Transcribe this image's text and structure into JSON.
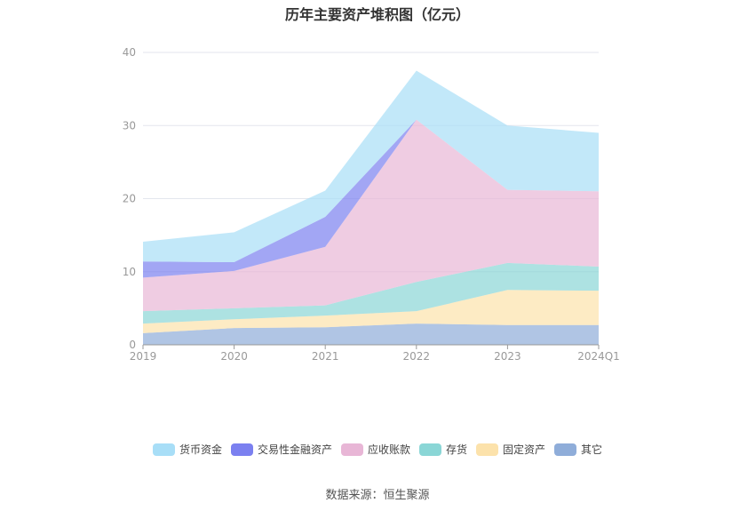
{
  "title": "历年主要资产堆积图（亿元）",
  "source": "数据来源：恒生聚源",
  "chart_data": {
    "type": "area",
    "stacked": true,
    "categories": [
      "2019",
      "2020",
      "2021",
      "2022",
      "2023",
      "2024Q1"
    ],
    "y_ticks": [
      "0",
      "10",
      "20",
      "30",
      "40"
    ],
    "ylim": [
      0,
      40
    ],
    "grid": true,
    "legend_position": "bottom",
    "series": [
      {
        "name": "其它",
        "color": "#8fadd9",
        "values": [
          1.6,
          2.3,
          2.4,
          2.9,
          2.7,
          2.7
        ]
      },
      {
        "name": "固定资产",
        "color": "#fce2ab",
        "values": [
          1.3,
          1.2,
          1.6,
          1.7,
          4.8,
          4.7
        ]
      },
      {
        "name": "存货",
        "color": "#8ad6d6",
        "values": [
          1.7,
          1.5,
          1.4,
          4.0,
          3.7,
          3.3
        ]
      },
      {
        "name": "应收账款",
        "color": "#e8b6d6",
        "values": [
          4.6,
          5.1,
          8.0,
          22.2,
          10.0,
          10.3
        ]
      },
      {
        "name": "交易性金融资产",
        "color": "#7b80f0",
        "values": [
          2.2,
          1.2,
          4.1,
          0.0,
          0.0,
          0.0
        ]
      },
      {
        "name": "货币资金",
        "color": "#a8def7",
        "values": [
          2.7,
          4.1,
          3.6,
          6.7,
          8.8,
          8.0
        ]
      }
    ]
  },
  "legend_order": [
    5,
    4,
    3,
    2,
    1,
    0
  ]
}
